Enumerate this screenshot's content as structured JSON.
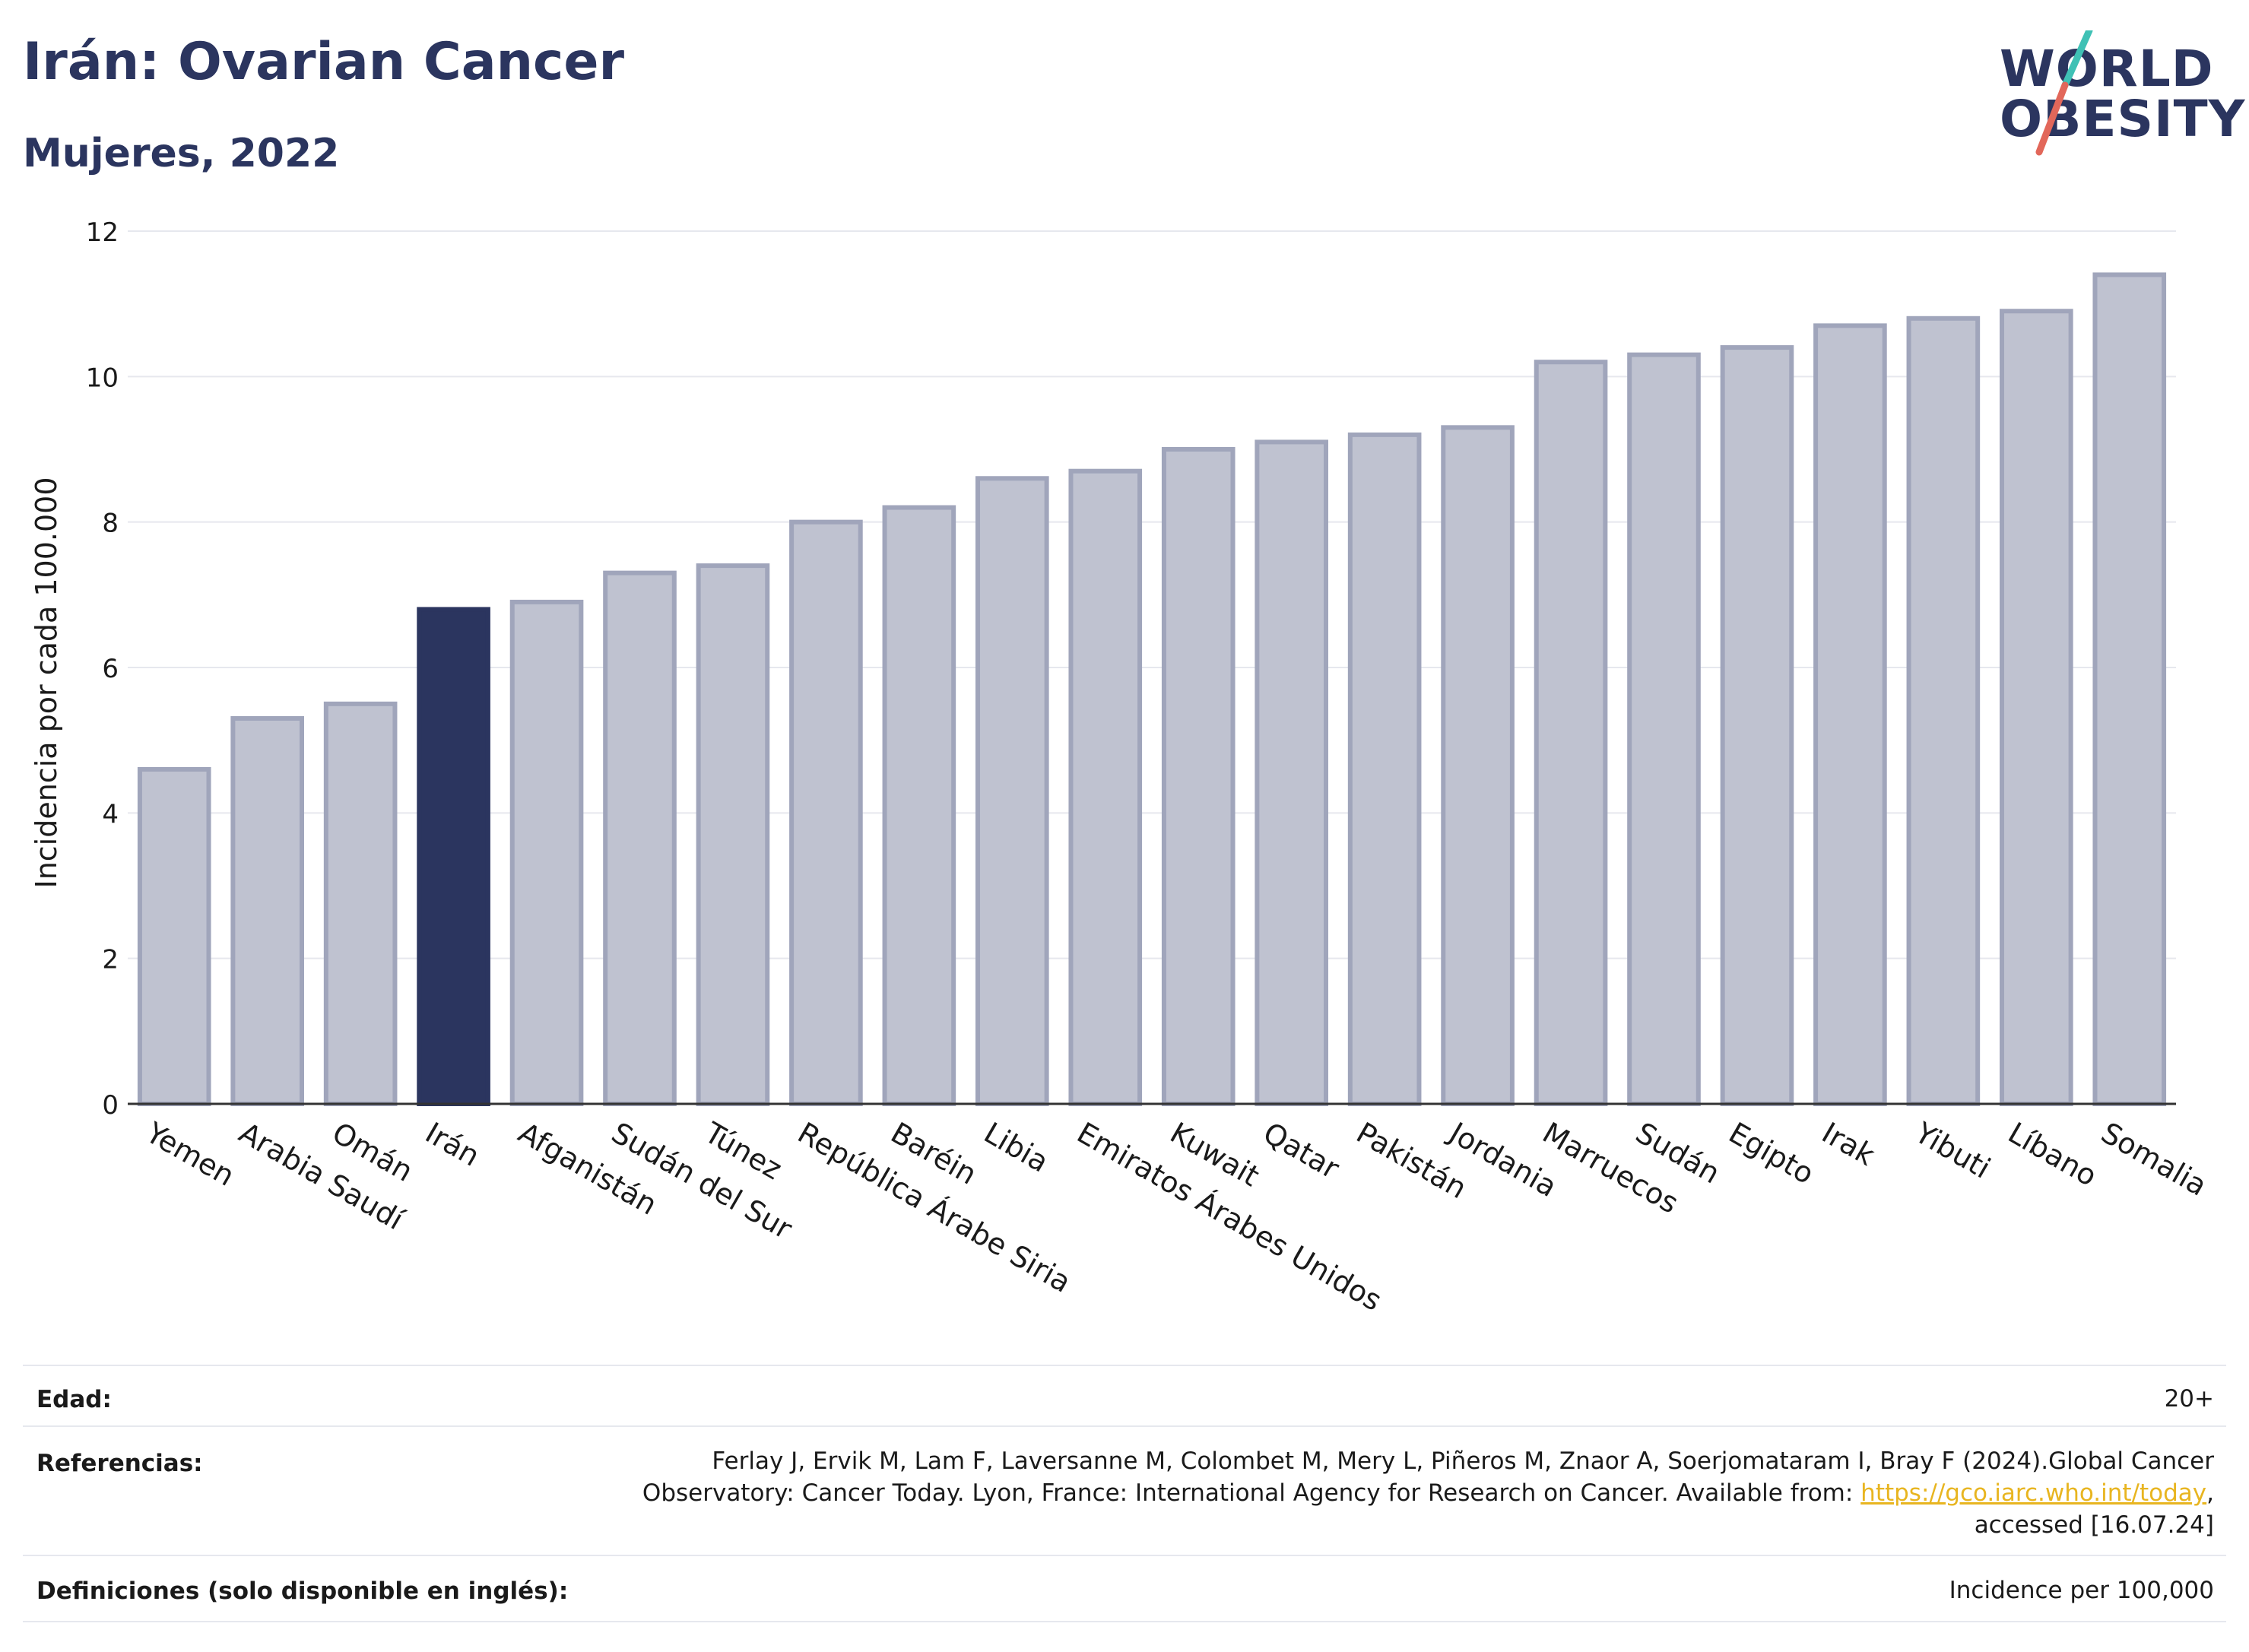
{
  "header": {
    "title": "Irán: Ovarian Cancer",
    "subtitle": "Mujeres, 2022",
    "logo_line1": "WORLD",
    "logo_line2": "OBESITY"
  },
  "chart_data": {
    "type": "bar",
    "ylabel": "Incidencia por cada 100.000",
    "ylim": [
      0,
      12
    ],
    "yticks": [
      0,
      2,
      4,
      6,
      8,
      10,
      12
    ],
    "grid": true,
    "highlight": "Irán",
    "categories": [
      "Yemen",
      "Arabia Saudí",
      "Omán",
      "Irán",
      "Afganistán",
      "Sudán del Sur",
      "Túnez",
      "República Árabe Siria",
      "Baréin",
      "Libia",
      "Emiratos Árabes Unidos",
      "Kuwait",
      "Qatar",
      "Pakistán",
      "Jordania",
      "Marruecos",
      "Sudán",
      "Egipto",
      "Irak",
      "Yibuti",
      "Líbano",
      "Somalia"
    ],
    "values": [
      4.6,
      5.3,
      5.5,
      6.8,
      6.9,
      7.3,
      7.4,
      8.0,
      8.2,
      8.6,
      8.7,
      9.0,
      9.1,
      9.2,
      9.3,
      10.2,
      10.3,
      10.4,
      10.7,
      10.8,
      10.9,
      11.4
    ],
    "colors": {
      "bar": "#bfc2d0",
      "bar_border": "#a0a5bb",
      "highlight": "#2b355f"
    }
  },
  "footer": {
    "age_label": "Edad:",
    "age_value": "20+",
    "ref_label": "Referencias:",
    "ref_line1": "Ferlay J, Ervik M, Lam F, Laversanne M, Colombet M, Mery L, Piñeros M, Znaor A, Soerjomataram I, Bray F (2024).Global Cancer",
    "ref_line2_pre": "Observatory: Cancer Today. Lyon, France: International Agency for Research on Cancer. Available from: ",
    "ref_link": "https://gco.iarc.who.int/today",
    "ref_line2_post": ",",
    "ref_line3": "accessed [16.07.24]",
    "def_label": "Definiciones (solo disponible en inglés):",
    "def_value": "Incidence per 100,000"
  }
}
